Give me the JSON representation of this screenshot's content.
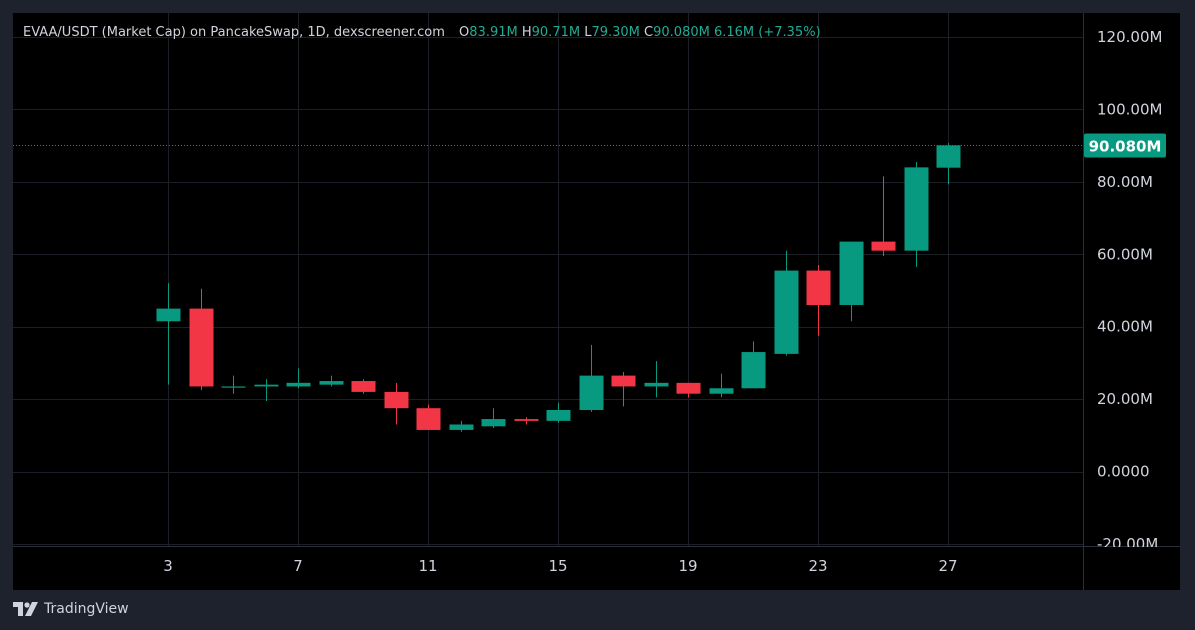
{
  "legend": {
    "title": "EVAA/USDT (Market Cap) on PancakeSwap, 1D, dexscreener.com",
    "o_label": "O",
    "o_value": "83.91M",
    "h_label": "H",
    "h_value": "90.71M",
    "l_label": "L",
    "l_value": "79.30M",
    "c_label": "C",
    "c_value": "90.080M",
    "change": "6.16M (+7.35%)"
  },
  "branding": {
    "logo_text": "TradingView"
  },
  "price_label": "90.080M",
  "colors": {
    "background": "#000000",
    "frame": "#1e222d",
    "up": "#089981",
    "down": "#f23645",
    "text": "#d1d4dc",
    "grid": "#1c1f26",
    "legend_value": "#22ab94"
  },
  "chart_data": {
    "type": "candlestick",
    "title": "EVAA/USDT (Market Cap) on PancakeSwap, 1D, dexscreener.com",
    "ylim": [
      -20,
      120
    ],
    "y_ticks": [
      -20,
      0,
      20,
      40,
      60,
      80,
      100,
      120
    ],
    "y_tick_labels": [
      "-20.00M",
      "0.0000",
      "20.00M",
      "40.00M",
      "60.00M",
      "80.00M",
      "100.00M",
      "120.00M"
    ],
    "x_ticks": [
      3,
      7,
      11,
      15,
      19,
      23,
      27
    ],
    "x_tick_labels": [
      "3",
      "7",
      "11",
      "15",
      "19",
      "23",
      "27"
    ],
    "last_value": 90.08,
    "candles": [
      {
        "day": 3,
        "o": 41.5,
        "h": 52.0,
        "l": 24.0,
        "c": 45.0
      },
      {
        "day": 4,
        "o": 45.0,
        "h": 50.5,
        "l": 22.5,
        "c": 23.5
      },
      {
        "day": 5,
        "o": 23.5,
        "h": 26.5,
        "l": 21.5,
        "c": 23.5
      },
      {
        "day": 6,
        "o": 23.5,
        "h": 25.5,
        "l": 19.5,
        "c": 24.0
      },
      {
        "day": 7,
        "o": 23.5,
        "h": 28.5,
        "l": 23.0,
        "c": 24.5
      },
      {
        "day": 8,
        "o": 24.0,
        "h": 26.5,
        "l": 23.5,
        "c": 25.0
      },
      {
        "day": 9,
        "o": 25.0,
        "h": 25.5,
        "l": 21.5,
        "c": 22.0
      },
      {
        "day": 10,
        "o": 22.0,
        "h": 24.5,
        "l": 13.0,
        "c": 17.5
      },
      {
        "day": 11,
        "o": 17.5,
        "h": 18.5,
        "l": 11.5,
        "c": 11.5
      },
      {
        "day": 12,
        "o": 11.5,
        "h": 14.0,
        "l": 11.0,
        "c": 13.0
      },
      {
        "day": 13,
        "o": 12.5,
        "h": 17.5,
        "l": 12.0,
        "c": 14.5
      },
      {
        "day": 14,
        "o": 14.5,
        "h": 15.0,
        "l": 13.0,
        "c": 14.0
      },
      {
        "day": 15,
        "o": 14.0,
        "h": 19.0,
        "l": 13.5,
        "c": 17.0
      },
      {
        "day": 16,
        "o": 17.0,
        "h": 35.0,
        "l": 16.5,
        "c": 26.5
      },
      {
        "day": 17,
        "o": 26.5,
        "h": 27.5,
        "l": 18.0,
        "c": 23.5
      },
      {
        "day": 18,
        "o": 23.5,
        "h": 30.5,
        "l": 20.5,
        "c": 24.5
      },
      {
        "day": 19,
        "o": 24.5,
        "h": 24.5,
        "l": 20.5,
        "c": 21.5
      },
      {
        "day": 20,
        "o": 21.5,
        "h": 27.0,
        "l": 20.5,
        "c": 23.0
      },
      {
        "day": 21,
        "o": 23.0,
        "h": 36.0,
        "l": 23.0,
        "c": 33.0
      },
      {
        "day": 22,
        "o": 32.5,
        "h": 61.0,
        "l": 32.0,
        "c": 55.5
      },
      {
        "day": 23,
        "o": 55.5,
        "h": 57.0,
        "l": 37.5,
        "c": 46.0
      },
      {
        "day": 24,
        "o": 46.0,
        "h": 63.5,
        "l": 41.5,
        "c": 63.5
      },
      {
        "day": 25,
        "o": 63.5,
        "h": 81.5,
        "l": 59.5,
        "c": 61.0
      },
      {
        "day": 26,
        "o": 61.0,
        "h": 85.5,
        "l": 56.5,
        "c": 84.0
      },
      {
        "day": 27,
        "o": 83.91,
        "h": 90.71,
        "l": 79.3,
        "c": 90.08
      }
    ]
  }
}
